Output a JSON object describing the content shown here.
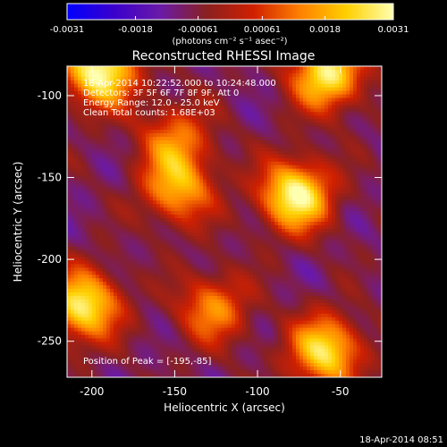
{
  "colorbar": {
    "tick_labels": [
      "-0.0031",
      "-0.0018",
      "-0.00061",
      "0.00061",
      "0.0018",
      "0.0031"
    ],
    "tick_values": [
      -0.0031,
      -0.0018,
      -0.00061,
      0.00061,
      0.0018,
      0.0031
    ],
    "range": [
      -0.0031,
      0.0031
    ],
    "units_label": "(photons cm⁻² s⁻¹ asec⁻²)",
    "colors": [
      "#0000ff",
      "#3a00cc",
      "#6a1aa8",
      "#8a2020",
      "#d02000",
      "#ff8000",
      "#ffd000",
      "#ffffb0"
    ]
  },
  "chart_data": {
    "type": "heatmap",
    "title": "Reconstructed RHESSI Image",
    "xlabel": "Heliocentric X (arcsec)",
    "ylabel": "Heliocentric Y (arcsec)",
    "xlim": [
      -215,
      -25
    ],
    "ylim": [
      -272,
      -82
    ],
    "x_ticks": [
      -200,
      -150,
      -100,
      -50
    ],
    "x_tick_labels": [
      "-200",
      "-150",
      "-100",
      "-50"
    ],
    "y_ticks": [
      -250,
      -200,
      -150,
      -100
    ],
    "y_tick_labels": [
      "-250",
      "-200",
      "-150",
      "-100"
    ],
    "info_lines": [
      "18-Apr-2014 10:22:52.000 to 10:24:48.000",
      "Detectors: 3F 5F 6F 7F 8F 9F, Att 0",
      "Energy Range: 12.0 - 25.0 keV",
      "Clean    Total counts: 1.68E+03"
    ],
    "peak_label": "Position of Peak = [-195,-85]",
    "peak_position": [
      -195,
      -85
    ],
    "sources": [
      {
        "x": -195,
        "y": -85,
        "intensity": 0.0031
      },
      {
        "x": -58,
        "y": -87,
        "intensity": 0.0027
      },
      {
        "x": -77,
        "y": -161,
        "intensity": 0.003
      },
      {
        "x": -205,
        "y": -228,
        "intensity": 0.0027
      },
      {
        "x": -59,
        "y": -256,
        "intensity": 0.0025
      },
      {
        "x": -148,
        "y": -157,
        "intensity": 0.0017
      },
      {
        "x": -127,
        "y": -230,
        "intensity": 0.0013
      },
      {
        "x": -150,
        "y": -127,
        "intensity": 0.0011
      }
    ]
  },
  "footer_timestamp": "18-Apr-2014 08:51"
}
